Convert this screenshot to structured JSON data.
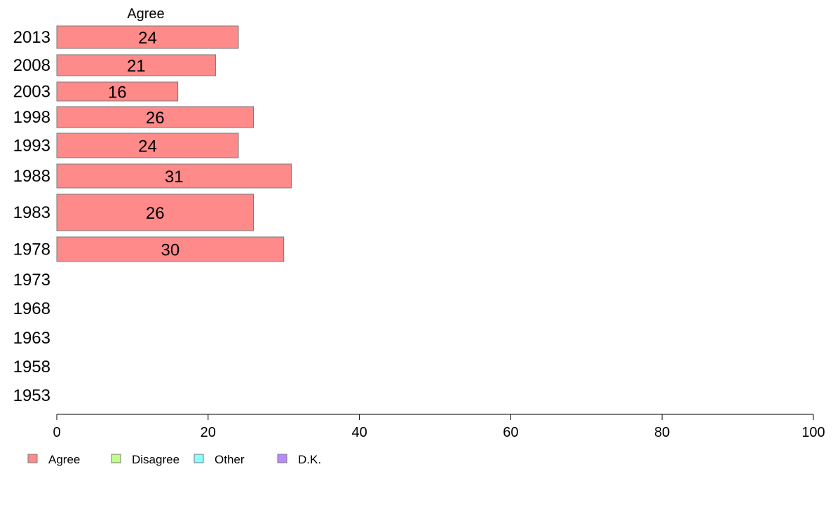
{
  "chart_data": {
    "type": "bar",
    "orientation": "horizontal",
    "stacked": true,
    "categories": [
      "2013",
      "2008",
      "2003",
      "1998",
      "1993",
      "1988",
      "1983",
      "1978",
      "1973",
      "1968",
      "1963",
      "1958",
      "1953"
    ],
    "series": [
      {
        "name": "Agree",
        "color": "#ff8a8a",
        "values": [
          24,
          21,
          16,
          26,
          24,
          31,
          26,
          30,
          null,
          null,
          null,
          null,
          null
        ]
      },
      {
        "name": "Disagree",
        "color": "#c2ff8a",
        "values": [
          null,
          null,
          null,
          null,
          null,
          null,
          null,
          null,
          null,
          null,
          null,
          null,
          null
        ]
      },
      {
        "name": "Other",
        "color": "#8affff",
        "values": [
          null,
          null,
          null,
          null,
          null,
          null,
          null,
          null,
          null,
          null,
          null,
          null,
          null
        ]
      },
      {
        "name": "D.K.",
        "color": "#b98aff",
        "values": [
          null,
          null,
          null,
          null,
          null,
          null,
          null,
          null,
          null,
          null,
          null,
          null,
          null
        ]
      }
    ],
    "value_labels": [
      "24",
      "21",
      "16",
      "26",
      "24",
      "31",
      "26",
      "30"
    ],
    "column_header": "Agree",
    "xlim": [
      0,
      100
    ],
    "xticks": [
      "0",
      "20",
      "40",
      "60",
      "80",
      "100"
    ],
    "grid": false,
    "legend_position": "bottom-left"
  }
}
